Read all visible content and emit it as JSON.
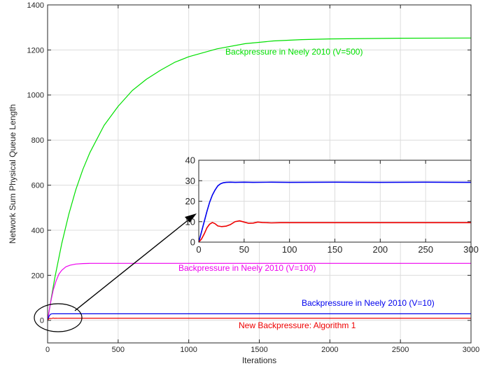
{
  "chart_data": [
    {
      "type": "line",
      "xlabel": "Iterations",
      "ylabel": "Network Sum Physical Queue Length",
      "xlim": [
        0,
        3000
      ],
      "ylim": [
        -100,
        1400
      ],
      "xticks": [
        0,
        500,
        1000,
        1500,
        2000,
        2500,
        3000
      ],
      "yticks": [
        0,
        200,
        400,
        600,
        800,
        1000,
        1200,
        1400
      ],
      "grid": true,
      "series": [
        {
          "name": "Backpressure in Neely 2010 (V=500)",
          "color": "#00e000",
          "x": [
            0,
            25,
            50,
            100,
            150,
            200,
            250,
            300,
            400,
            500,
            600,
            700,
            800,
            900,
            1000,
            1200,
            1400,
            1600,
            1800,
            2000,
            2500,
            3000
          ],
          "y": [
            0,
            95,
            185,
            340,
            470,
            580,
            670,
            745,
            865,
            950,
            1020,
            1070,
            1110,
            1145,
            1170,
            1205,
            1228,
            1240,
            1246,
            1249,
            1252,
            1253
          ]
        },
        {
          "name": "Backpressure in Neely 2010 (V=100)",
          "color": "#ee00ee",
          "x": [
            0,
            20,
            40,
            60,
            80,
            100,
            130,
            160,
            200,
            250,
            300,
            400,
            600,
            1000,
            3000
          ],
          "y": [
            0,
            75,
            135,
            175,
            205,
            222,
            238,
            245,
            250,
            252,
            253,
            253,
            253,
            253,
            253
          ]
        },
        {
          "name": "Backpressure in Neely 2010 (V=10)",
          "color": "#0000ee",
          "x": [
            0,
            10,
            20,
            30,
            40,
            60,
            100,
            3000
          ],
          "y": [
            0,
            18,
            27,
            29,
            29.3,
            29.3,
            29.3,
            29.3
          ]
        },
        {
          "name": "New Backpressure: Algorithm 1",
          "color": "#ee0000",
          "x": [
            0,
            10,
            15,
            20,
            30,
            40,
            50,
            60,
            70,
            100,
            3000
          ],
          "y": [
            0,
            8,
            9.5,
            8,
            8.5,
            10.3,
            9,
            9.7,
            9.3,
            9.5,
            9.5
          ]
        }
      ],
      "annotations": [
        "Backpressure in Neely 2010 (V=500)",
        "Backpressure in Neely 2010 (V=100)",
        "Backpressure in Neely 2010 (V=10)",
        "New Backpressure: Algorithm 1"
      ]
    },
    {
      "type": "line",
      "xlim": [
        0,
        300
      ],
      "ylim": [
        0,
        40
      ],
      "xticks": [
        0,
        50,
        100,
        150,
        200,
        250,
        300
      ],
      "yticks": [
        0,
        10,
        20,
        30,
        40
      ],
      "grid": true,
      "series": [
        {
          "color": "#0000ee",
          "x": [
            0,
            3,
            6,
            9,
            12,
            15,
            18,
            21,
            24,
            27,
            30,
            35,
            40,
            50,
            60,
            80,
            100,
            150,
            200,
            250,
            300
          ],
          "y": [
            0,
            5,
            10,
            15,
            19.5,
            23,
            25.5,
            27.5,
            28.5,
            29,
            29.2,
            29.3,
            29.2,
            29.3,
            29.2,
            29.3,
            29.2,
            29.3,
            29.2,
            29.3,
            29.2
          ]
        },
        {
          "color": "#ee0000",
          "x": [
            0,
            3,
            6,
            9,
            12,
            15,
            18,
            21,
            25,
            30,
            35,
            40,
            45,
            50,
            55,
            60,
            65,
            70,
            80,
            90,
            100,
            150,
            200,
            250,
            300
          ],
          "y": [
            0,
            1.5,
            4,
            7,
            8.8,
            9.6,
            9.0,
            7.9,
            7.6,
            7.8,
            8.6,
            10.0,
            10.4,
            9.8,
            9.2,
            9.3,
            9.8,
            9.6,
            9.4,
            9.5,
            9.5,
            9.5,
            9.5,
            9.5,
            9.5
          ]
        }
      ]
    }
  ]
}
